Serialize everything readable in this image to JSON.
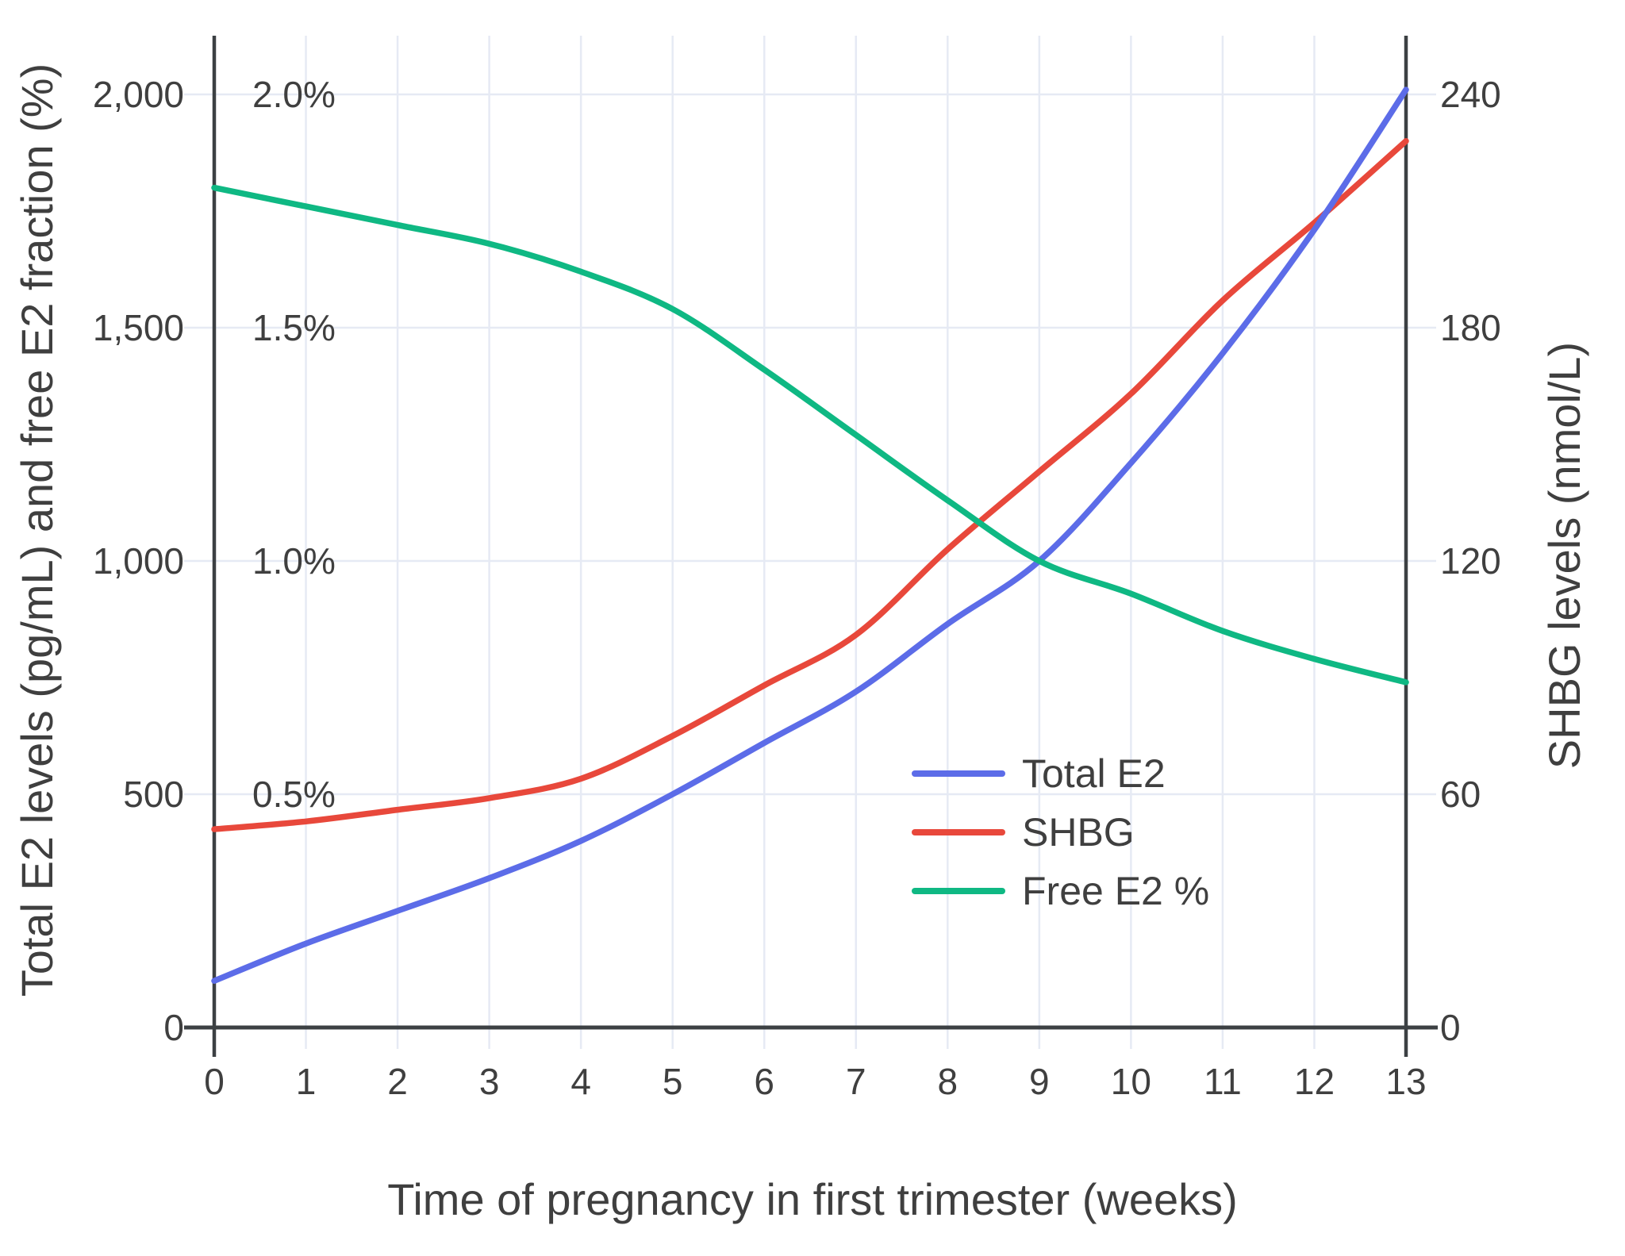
{
  "chart_data": {
    "type": "line",
    "title": "",
    "xlabel": "Time of pregnancy in first trimester (weeks)",
    "ylabel_left": "Total E2 levels (pg/mL) and free E2 fraction (%)",
    "ylabel_right": "SHBG levels (nmol/L)",
    "x": [
      0,
      1,
      2,
      3,
      4,
      5,
      6,
      7,
      8,
      9,
      10,
      11,
      12,
      13
    ],
    "series": [
      {
        "name": "Total E2",
        "axis": "left",
        "unit": "pg/mL",
        "color": "#5C6CE8",
        "values": [
          100,
          180,
          250,
          320,
          400,
          500,
          610,
          720,
          865,
          1000,
          1210,
          1445,
          1710,
          2010
        ]
      },
      {
        "name": "SHBG",
        "axis": "right",
        "unit": "nmol/L",
        "color": "#E8483B",
        "values": [
          51,
          53,
          56,
          59,
          64,
          75,
          88,
          101,
          123,
          143,
          163,
          187,
          207,
          228
        ]
      },
      {
        "name": "Free E2 %",
        "axis": "percent",
        "unit": "%",
        "color": "#0FB883",
        "values": [
          1.8,
          1.76,
          1.72,
          1.68,
          1.62,
          1.54,
          1.41,
          1.27,
          1.13,
          1.0,
          0.93,
          0.85,
          0.79,
          0.74
        ]
      }
    ],
    "axes": {
      "x_ticks": [
        0,
        1,
        2,
        3,
        4,
        5,
        6,
        7,
        8,
        9,
        10,
        11,
        12,
        13
      ],
      "left_ticks": {
        "values": [
          0,
          500,
          1000,
          1500,
          2000
        ],
        "labels": [
          "0",
          "500",
          "1,000",
          "1,500",
          "2,000"
        ]
      },
      "percent_ticks": {
        "values": [
          500,
          1000,
          1500,
          2000
        ],
        "labels": [
          "0.5%",
          "1.0%",
          "1.5%",
          "2.0%"
        ]
      },
      "right_ticks": {
        "values": [
          0,
          60,
          120,
          180,
          240
        ],
        "labels": [
          "0",
          "60",
          "120",
          "180",
          "240"
        ]
      },
      "left_range": [
        0,
        2126
      ],
      "right_range": [
        0,
        255
      ],
      "percent_range": [
        0,
        2.126
      ],
      "x_range": [
        0,
        13
      ],
      "grid": true,
      "legend_position": "inside-lower-right"
    },
    "draw_order": [
      "SHBG",
      "Total E2",
      "Free E2 %"
    ]
  },
  "colors": {
    "background": "#FFFFFF",
    "text": "#3F3F3F",
    "grid": "#E6EAF4",
    "axis_line": "#3C4043"
  }
}
